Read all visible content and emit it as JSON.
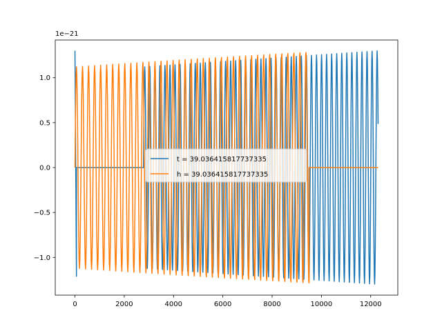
{
  "chart_data": {
    "type": "line",
    "title": "",
    "xlabel": "",
    "ylabel": "",
    "offset_label": "1e−21",
    "xlim": [
      -800,
      13100
    ],
    "ylim": [
      -1.42,
      1.42
    ],
    "x_ticks": [
      0,
      2000,
      4000,
      6000,
      8000,
      10000,
      12000
    ],
    "x_tick_labels": [
      "0",
      "2000",
      "4000",
      "6000",
      "8000",
      "10000",
      "12000"
    ],
    "y_ticks": [
      -1.0,
      -0.5,
      0.0,
      0.5,
      1.0
    ],
    "y_tick_labels": [
      "−1.0",
      "−0.5",
      "0.0",
      "0.5",
      "1.0"
    ],
    "grid": false,
    "legend_position": "center",
    "series": [
      {
        "name": "t = 39.036415817737335",
        "color": "#1f77b4",
        "x_range": [
          0,
          12300
        ],
        "segments": [
          {
            "x": [
              0,
              60
            ],
            "kind": "spike",
            "start": 1.3,
            "end": -1.21
          },
          {
            "x": [
              60,
              2780
            ],
            "kind": "flat",
            "value": 0.0
          },
          {
            "x": [
              2780,
              12300
            ],
            "kind": "oscillation",
            "period": 205,
            "amp_start": 1.12,
            "amp_end": 1.3
          }
        ]
      },
      {
        "name": "h = 39.036415817737335",
        "color": "#ff7f0e",
        "x_range": [
          0,
          12300
        ],
        "segments": [
          {
            "x": [
              0,
              9500
            ],
            "kind": "oscillation",
            "period": 245,
            "amp_start": 1.12,
            "amp_end": 1.3
          },
          {
            "x": [
              9500,
              12300
            ],
            "kind": "flat",
            "value": 0.0
          }
        ]
      }
    ]
  }
}
